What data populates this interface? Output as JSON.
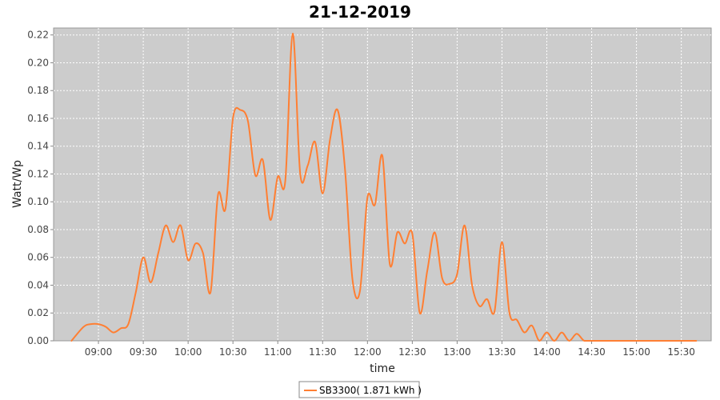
{
  "chart_data": {
    "type": "line",
    "title": "21-12-2019",
    "xlabel": "time",
    "ylabel": "Watt/Wp",
    "ylim": [
      0,
      0.225
    ],
    "yticks": [
      "0.00",
      "0.02",
      "0.04",
      "0.06",
      "0.08",
      "0.10",
      "0.12",
      "0.14",
      "0.16",
      "0.18",
      "0.20",
      "0.22"
    ],
    "xticks": [
      "09:00",
      "09:30",
      "10:00",
      "10:30",
      "11:00",
      "11:30",
      "12:00",
      "12:30",
      "13:00",
      "13:30",
      "14:00",
      "14:30",
      "15:00",
      "15:30"
    ],
    "grid": true,
    "legend_position": "bottom-center",
    "background_color": "#cccccc",
    "series": [
      {
        "name": "SB3300( 1.871 kWh )",
        "color": "#ff7f33",
        "x": [
          "08:42",
          "08:50",
          "08:55",
          "09:00",
          "09:05",
          "09:10",
          "09:15",
          "09:20",
          "09:25",
          "09:30",
          "09:35",
          "09:40",
          "09:45",
          "09:50",
          "09:55",
          "10:00",
          "10:05",
          "10:10",
          "10:15",
          "10:20",
          "10:25",
          "10:30",
          "10:35",
          "10:40",
          "10:45",
          "10:50",
          "10:55",
          "11:00",
          "11:05",
          "11:10",
          "11:15",
          "11:20",
          "11:25",
          "11:30",
          "11:35",
          "11:40",
          "11:45",
          "11:50",
          "11:55",
          "12:00",
          "12:05",
          "12:10",
          "12:15",
          "12:20",
          "12:25",
          "12:30",
          "12:35",
          "12:40",
          "12:45",
          "12:50",
          "12:55",
          "13:00",
          "13:05",
          "13:10",
          "13:15",
          "13:20",
          "13:25",
          "13:30",
          "13:35",
          "13:40",
          "13:45",
          "13:50",
          "13:55",
          "14:00",
          "14:05",
          "14:10",
          "14:15",
          "14:20",
          "14:25",
          "14:30",
          "14:35",
          "14:40",
          "14:45",
          "14:50",
          "14:55",
          "15:00",
          "15:05",
          "15:10",
          "15:15",
          "15:20",
          "15:25",
          "15:30",
          "15:35",
          "15:40"
        ],
        "values": [
          0.0,
          0.01,
          0.012,
          0.012,
          0.01,
          0.006,
          0.009,
          0.012,
          0.035,
          0.06,
          0.042,
          0.063,
          0.083,
          0.071,
          0.083,
          0.058,
          0.07,
          0.063,
          0.035,
          0.105,
          0.095,
          0.16,
          0.166,
          0.158,
          0.119,
          0.13,
          0.087,
          0.118,
          0.115,
          0.221,
          0.12,
          0.126,
          0.143,
          0.106,
          0.145,
          0.166,
          0.123,
          0.044,
          0.036,
          0.103,
          0.098,
          0.133,
          0.055,
          0.078,
          0.07,
          0.077,
          0.02,
          0.05,
          0.078,
          0.045,
          0.041,
          0.048,
          0.083,
          0.04,
          0.025,
          0.03,
          0.021,
          0.071,
          0.02,
          0.015,
          0.006,
          0.011,
          0.0,
          0.006,
          0.0,
          0.006,
          0.0,
          0.005,
          0.0,
          0.0,
          0.0,
          0.0,
          0.0,
          0.0,
          0.0,
          0.0,
          0.0,
          0.0,
          0.0,
          0.0,
          0.0,
          0.0,
          0.0,
          0.0
        ]
      }
    ]
  }
}
